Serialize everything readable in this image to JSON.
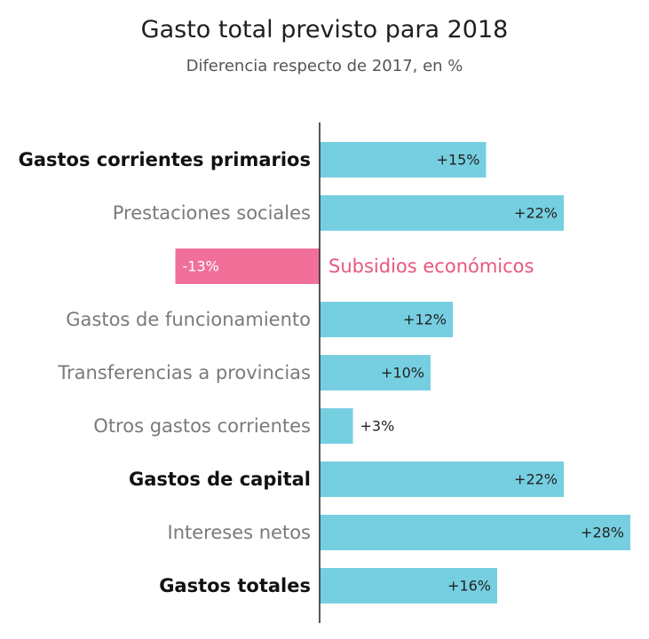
{
  "chart_data": {
    "type": "bar",
    "orientation": "horizontal",
    "title": "Gasto total previsto para 2018",
    "subtitle": "Diferencia respecto de 2017, en %",
    "xlim": [
      -13,
      28
    ],
    "grid": false,
    "legend": "none",
    "categories": [
      "Gastos corrientes primarios",
      "Prestaciones sociales",
      "Subsidios económicos",
      "Gastos de funcionamiento",
      "Transferencias a provincias",
      "Otros gastos corrientes",
      "Gastos de capital",
      "Intereses netos",
      "Gastos totales"
    ],
    "bold": [
      true,
      false,
      false,
      false,
      false,
      false,
      true,
      false,
      true
    ],
    "values": [
      15,
      22,
      -13,
      12,
      10,
      3,
      22,
      28,
      16
    ],
    "value_labels": [
      "+15%",
      "+22%",
      "-13%",
      "+12%",
      "+10%",
      "+3%",
      "+22%",
      "+28%",
      "+16%"
    ],
    "colors": {
      "positive": "#76cfe0",
      "negative": "#f0709a",
      "bold_label": "#111111",
      "normal_label": "#7a7a7a",
      "negative_label": "#e8577f",
      "axis": "#222222"
    }
  }
}
